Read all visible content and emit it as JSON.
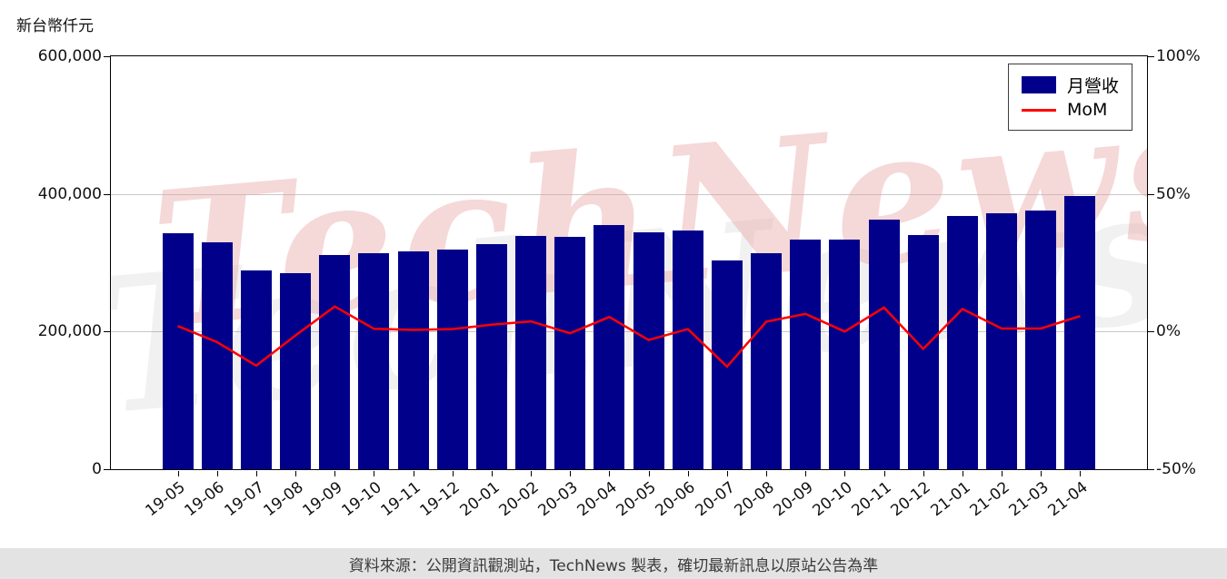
{
  "watermark": {
    "text": "TechNews"
  },
  "footer": {
    "text": "資料來源：公開資訊觀測站，TechNews 製表，確切最新訊息以原站公告為準"
  },
  "colors": {
    "bar": "#00008B",
    "line": "#FF0000",
    "grid": "#c8c8c8",
    "watermark": "#E79B9B",
    "footer_bg": "#e3e3e3"
  },
  "chart_data": {
    "type": "bar+line",
    "categories": [
      "19-05",
      "19-06",
      "19-07",
      "19-08",
      "19-09",
      "19-10",
      "19-11",
      "19-12",
      "20-01",
      "20-02",
      "20-03",
      "20-04",
      "20-05",
      "20-06",
      "20-07",
      "20-08",
      "20-09",
      "20-10",
      "20-11",
      "20-12",
      "21-01",
      "21-02",
      "21-03",
      "21-04"
    ],
    "series": [
      {
        "name": "月營收",
        "type": "bar",
        "axis": "left",
        "color": "#00008B",
        "values": [
          343000,
          330000,
          289000,
          285000,
          311000,
          314000,
          316000,
          319000,
          327000,
          339000,
          337000,
          355000,
          344000,
          347000,
          303000,
          314000,
          334000,
          334000,
          363000,
          340000,
          368000,
          372000,
          376000,
          397000
        ]
      },
      {
        "name": "MoM",
        "type": "line",
        "axis": "right",
        "color": "#FF0000",
        "values": [
          2.0,
          -3.8,
          -12.4,
          -1.4,
          9.1,
          1.0,
          0.6,
          0.9,
          2.5,
          3.7,
          -0.6,
          5.3,
          -3.1,
          0.9,
          -12.7,
          3.6,
          6.4,
          0.0,
          8.7,
          -6.3,
          8.2,
          1.1,
          1.1,
          5.6
        ]
      }
    ],
    "left_axis": {
      "label": "新台幣仟元",
      "min": 0,
      "max": 600000,
      "ticks": [
        {
          "v": 0,
          "label": "0"
        },
        {
          "v": 200000,
          "label": "200,000"
        },
        {
          "v": 400000,
          "label": "400,000"
        },
        {
          "v": 600000,
          "label": "600,000"
        }
      ],
      "gridlines": [
        200000,
        400000
      ]
    },
    "right_axis": {
      "min": -50,
      "max": 100,
      "ticks": [
        {
          "v": -50,
          "label": "-50%"
        },
        {
          "v": 0,
          "label": "0%"
        },
        {
          "v": 50,
          "label": "50%"
        },
        {
          "v": 100,
          "label": "100%"
        }
      ]
    },
    "legend": {
      "position": "upper right",
      "entries": [
        "月營收",
        "MoM"
      ]
    },
    "grid": true
  }
}
